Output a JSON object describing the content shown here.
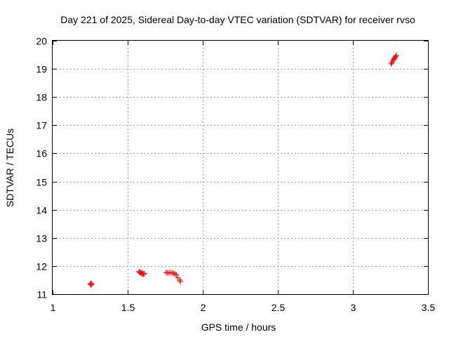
{
  "colors": {
    "series": "#ff0000",
    "grid": "#a0a0a0",
    "axis": "#000000",
    "background": "#ffffff"
  },
  "chart_data": {
    "type": "scatter",
    "title": "Day 221 of 2025, Sidereal Day-to-day VTEC variation (SDTVAR) for receiver rvso",
    "xlabel": "GPS time / hours",
    "ylabel": "SDTVAR / TECUs",
    "xlim": [
      1,
      3.5
    ],
    "ylim": [
      11,
      20
    ],
    "xticks": [
      1,
      1.5,
      2,
      2.5,
      3,
      3.5
    ],
    "xtick_labels": [
      "1",
      "1.5",
      "2",
      "2.5",
      "3",
      "3.5"
    ],
    "yticks": [
      11,
      12,
      13,
      14,
      15,
      16,
      17,
      18,
      19,
      20
    ],
    "ytick_labels": [
      "11",
      "12",
      "13",
      "14",
      "15",
      "16",
      "17",
      "18",
      "19",
      "20"
    ],
    "grid": true,
    "marker": "plus",
    "series": [
      {
        "name": "rvso",
        "points": [
          [
            1.25,
            11.35
          ],
          [
            1.255,
            11.38
          ],
          [
            1.258,
            11.33
          ],
          [
            1.262,
            11.37
          ],
          [
            1.575,
            11.8
          ],
          [
            1.58,
            11.78
          ],
          [
            1.585,
            11.75
          ],
          [
            1.59,
            11.77
          ],
          [
            1.595,
            11.72
          ],
          [
            1.6,
            11.74
          ],
          [
            1.605,
            11.71
          ],
          [
            1.612,
            11.73
          ],
          [
            1.755,
            11.77
          ],
          [
            1.765,
            11.76
          ],
          [
            1.775,
            11.75
          ],
          [
            1.785,
            11.77
          ],
          [
            1.795,
            11.76
          ],
          [
            1.805,
            11.75
          ],
          [
            1.815,
            11.72
          ],
          [
            1.825,
            11.68
          ],
          [
            1.835,
            11.58
          ],
          [
            1.845,
            11.5
          ],
          [
            1.852,
            11.45
          ],
          [
            3.255,
            19.18
          ],
          [
            3.26,
            19.22
          ],
          [
            3.265,
            19.28
          ],
          [
            3.27,
            19.33
          ],
          [
            3.275,
            19.36
          ],
          [
            3.28,
            19.4
          ],
          [
            3.285,
            19.44
          ],
          [
            3.29,
            19.48
          ]
        ]
      }
    ]
  }
}
